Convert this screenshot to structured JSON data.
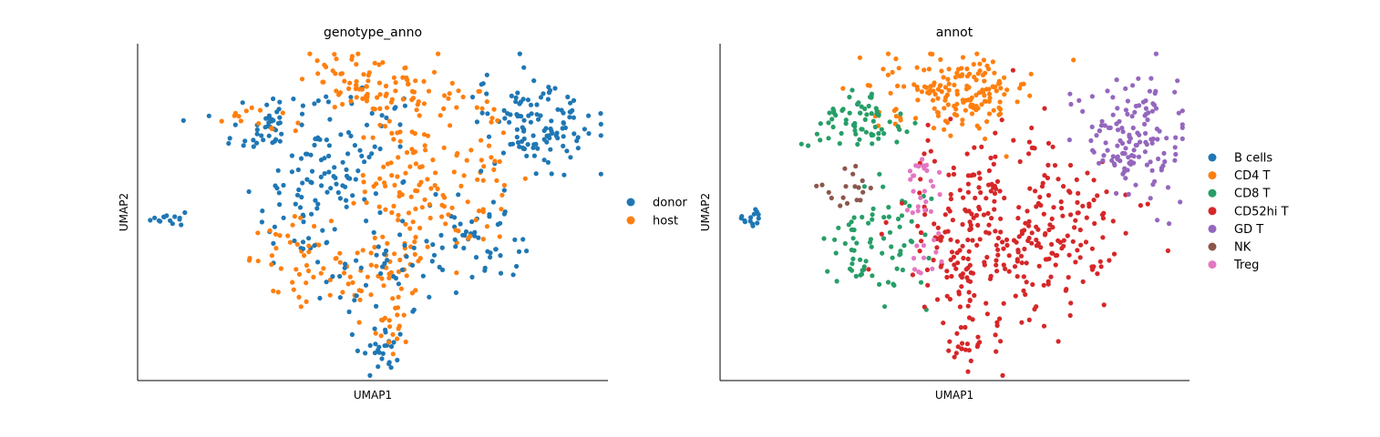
{
  "chart_data": [
    {
      "type": "scatter",
      "title": "genotype_anno",
      "xlabel": "UMAP1",
      "ylabel": "UMAP2",
      "xlim": [
        0,
        10
      ],
      "ylim": [
        0,
        10
      ],
      "grid": false,
      "legend_position": "right",
      "series": [
        {
          "name": "donor",
          "color": "#1f77b4"
        },
        {
          "name": "host",
          "color": "#ff7f0e"
        }
      ],
      "clusters": [
        {
          "series": "donor",
          "cx": 0.65,
          "cy": 4.8,
          "sx": 0.18,
          "sy": 0.12,
          "n": 14
        },
        {
          "series": "donor",
          "cx": 2.9,
          "cy": 7.5,
          "sx": 0.55,
          "sy": 0.6,
          "n": 60
        },
        {
          "series": "host",
          "cx": 2.5,
          "cy": 7.9,
          "sx": 0.35,
          "sy": 0.3,
          "n": 14
        },
        {
          "series": "donor",
          "cx": 3.6,
          "cy": 5.2,
          "sx": 0.6,
          "sy": 0.9,
          "n": 55
        },
        {
          "series": "host",
          "cx": 3.4,
          "cy": 3.6,
          "sx": 0.5,
          "sy": 0.55,
          "n": 45
        },
        {
          "series": "donor",
          "cx": 4.8,
          "cy": 6.8,
          "sx": 0.7,
          "sy": 0.9,
          "n": 50
        },
        {
          "series": "host",
          "cx": 5.1,
          "cy": 8.8,
          "sx": 0.75,
          "sy": 0.45,
          "n": 90
        },
        {
          "series": "host",
          "cx": 5.7,
          "cy": 6.0,
          "sx": 0.55,
          "sy": 1.0,
          "n": 80
        },
        {
          "series": "host",
          "cx": 5.3,
          "cy": 3.3,
          "sx": 0.55,
          "sy": 0.7,
          "n": 55
        },
        {
          "series": "donor",
          "cx": 5.2,
          "cy": 3.5,
          "sx": 0.8,
          "sy": 1.0,
          "n": 45
        },
        {
          "series": "donor",
          "cx": 5.2,
          "cy": 0.9,
          "sx": 0.22,
          "sy": 0.35,
          "n": 25
        },
        {
          "series": "host",
          "cx": 5.4,
          "cy": 1.9,
          "sx": 0.25,
          "sy": 0.45,
          "n": 18
        },
        {
          "series": "donor",
          "cx": 8.5,
          "cy": 7.7,
          "sx": 0.65,
          "sy": 0.75,
          "n": 120
        },
        {
          "series": "host",
          "cx": 7.4,
          "cy": 7.2,
          "sx": 0.45,
          "sy": 0.9,
          "n": 30
        },
        {
          "series": "donor",
          "cx": 7.3,
          "cy": 4.0,
          "sx": 0.55,
          "sy": 0.7,
          "n": 50
        },
        {
          "series": "host",
          "cx": 6.8,
          "cy": 4.8,
          "sx": 0.6,
          "sy": 0.7,
          "n": 25
        }
      ]
    },
    {
      "type": "scatter",
      "title": "annot",
      "xlabel": "UMAP1",
      "ylabel": "UMAP2",
      "xlim": [
        0,
        10
      ],
      "ylim": [
        0,
        10
      ],
      "grid": false,
      "legend_position": "right",
      "series": [
        {
          "name": "B cells",
          "color": "#1f77b4"
        },
        {
          "name": "CD4 T",
          "color": "#ff7f0e"
        },
        {
          "name": "CD8 T",
          "color": "#279e68"
        },
        {
          "name": "CD52hi T",
          "color": "#d62728"
        },
        {
          "name": "GD T",
          "color": "#9467bd"
        },
        {
          "name": "NK",
          "color": "#8c564b"
        },
        {
          "name": "Treg",
          "color": "#e377c2"
        }
      ],
      "clusters": [
        {
          "series": "B cells",
          "cx": 0.65,
          "cy": 4.8,
          "sx": 0.18,
          "sy": 0.12,
          "n": 14
        },
        {
          "series": "CD4 T",
          "cx": 5.1,
          "cy": 8.6,
          "sx": 0.8,
          "sy": 0.55,
          "n": 170
        },
        {
          "series": "CD8 T",
          "cx": 2.8,
          "cy": 7.7,
          "sx": 0.55,
          "sy": 0.45,
          "n": 70
        },
        {
          "series": "CD8 T",
          "cx": 3.3,
          "cy": 4.0,
          "sx": 0.55,
          "sy": 0.9,
          "n": 75
        },
        {
          "series": "CD52hi T",
          "cx": 5.7,
          "cy": 4.3,
          "sx": 0.9,
          "sy": 1.5,
          "n": 260
        },
        {
          "series": "CD52hi T",
          "cx": 7.5,
          "cy": 4.4,
          "sx": 0.55,
          "sy": 1.0,
          "n": 80
        },
        {
          "series": "CD52hi T",
          "cx": 5.3,
          "cy": 1.1,
          "sx": 0.25,
          "sy": 0.35,
          "n": 20
        },
        {
          "series": "GD T",
          "cx": 8.8,
          "cy": 7.3,
          "sx": 0.55,
          "sy": 0.9,
          "n": 140
        },
        {
          "series": "NK",
          "cx": 2.8,
          "cy": 5.6,
          "sx": 0.3,
          "sy": 0.35,
          "n": 18
        },
        {
          "series": "Treg",
          "cx": 4.3,
          "cy": 5.9,
          "sx": 0.2,
          "sy": 0.6,
          "n": 25
        },
        {
          "series": "Treg",
          "cx": 4.4,
          "cy": 3.7,
          "sx": 0.2,
          "sy": 0.25,
          "n": 12
        }
      ]
    }
  ]
}
